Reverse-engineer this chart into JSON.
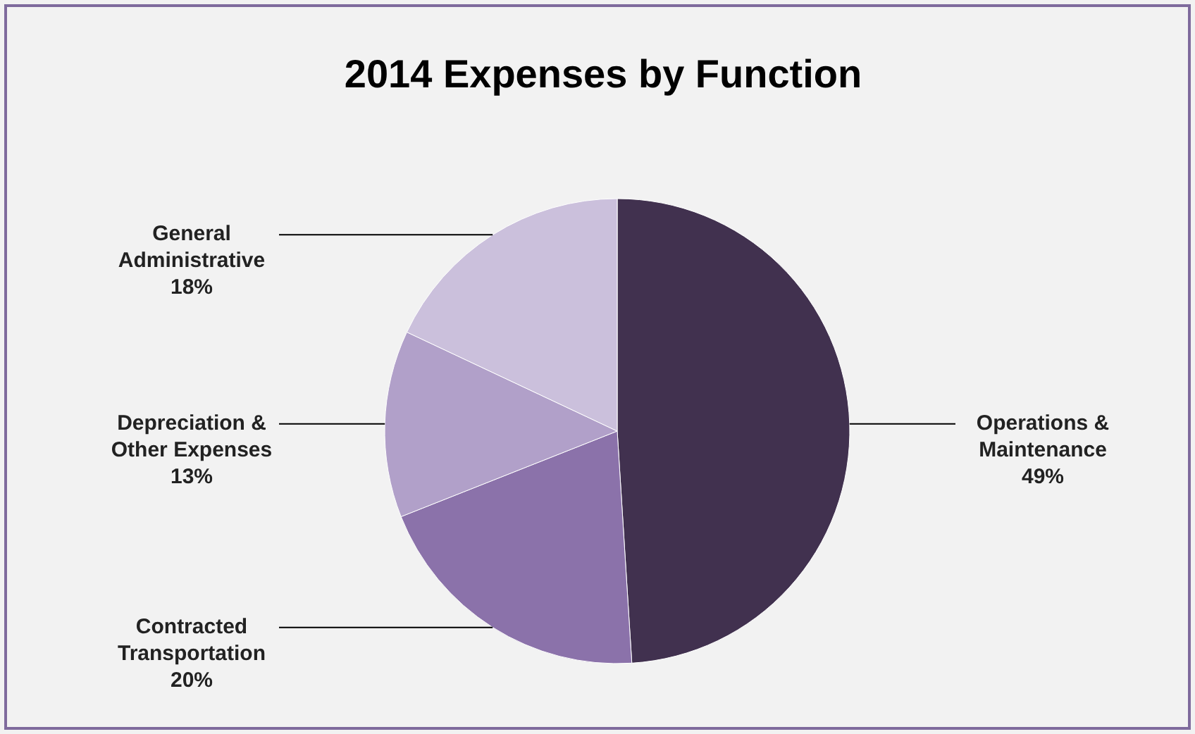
{
  "chart_data": {
    "type": "pie",
    "title": "2014 Expenses by Function",
    "categories": [
      "Operations & Maintenance",
      "Contracted Transportation",
      "Depreciation & Other Expenses",
      "General Administrative"
    ],
    "values": [
      49,
      20,
      13,
      18
    ],
    "value_labels": [
      "49%",
      "20%",
      "13%",
      "18%"
    ],
    "colors": [
      "#41314f",
      "#8b72aa",
      "#b1a0c9",
      "#cbc0dc"
    ]
  }
}
